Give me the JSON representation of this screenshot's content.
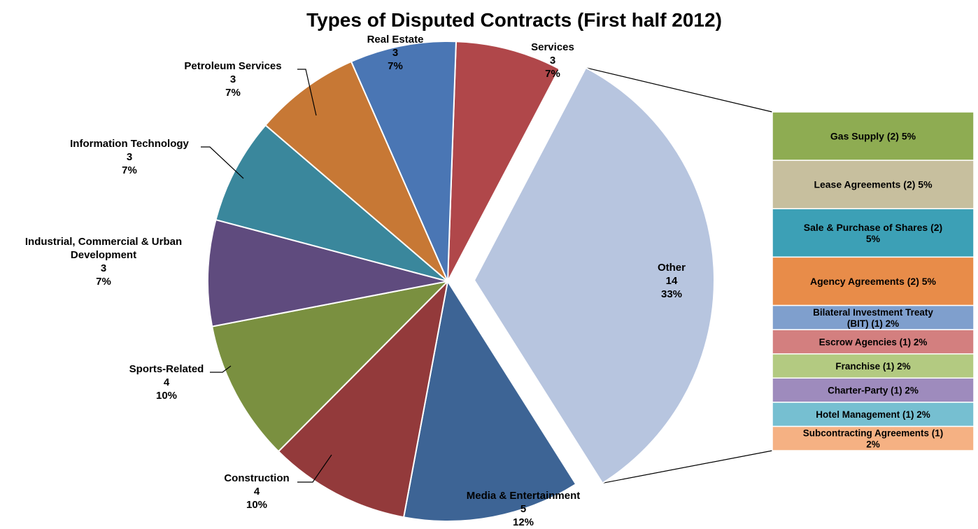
{
  "chart_data": {
    "type": "pie",
    "title": "Types of Disputed Contracts (First half 2012)",
    "slices": [
      {
        "name": "Services",
        "count": "3",
        "percent": "7%",
        "value": 3,
        "color": "#b0474a"
      },
      {
        "name": "Other",
        "count": "14",
        "percent": "33%",
        "value": 14,
        "color": "#b7c5df",
        "exploded": true
      },
      {
        "name": "Media & Entertainment",
        "count": "5",
        "percent": "12%",
        "value": 5,
        "color": "#3d6495"
      },
      {
        "name": "Construction",
        "count": "4",
        "percent": "10%",
        "value": 4,
        "color": "#933a3b"
      },
      {
        "name": "Sports-Related",
        "count": "4",
        "percent": "10%",
        "value": 4,
        "color": "#7a9040"
      },
      {
        "name": "Industrial, Commercial & Urban",
        "name_line2": "Development",
        "count": "3",
        "percent": "7%",
        "value": 3,
        "color": "#5f4b7e"
      },
      {
        "name": "Information Technology",
        "count": "3",
        "percent": "7%",
        "value": 3,
        "color": "#3a879c"
      },
      {
        "name": "Petroleum Services",
        "count": "3",
        "percent": "7%",
        "value": 3,
        "color": "#c77835"
      },
      {
        "name": "Real Estate",
        "count": "3",
        "percent": "7%",
        "value": 3,
        "color": "#4a76b4"
      }
    ],
    "other_breakdown": [
      {
        "label": "Gas Supply  (2) 5%",
        "value": 2,
        "color": "#8eac52"
      },
      {
        "label": "Lease Agreements (2) 5%",
        "value": 2,
        "color": "#c7bf9e"
      },
      {
        "label": "Sale & Purchase of Shares (2)",
        "label_line2": "5%",
        "value": 2,
        "color": "#3ca0b6"
      },
      {
        "label": "Agency Agreements (2) 5%",
        "value": 2,
        "color": "#e88c49"
      },
      {
        "label": "Bilateral Investment Treaty",
        "label_line2": "(BIT) (1) 2%",
        "value": 1,
        "color": "#7f9fcd"
      },
      {
        "label": "Escrow Agencies (1) 2%",
        "value": 1,
        "color": "#d37f7f"
      },
      {
        "label": "Franchise (1) 2%",
        "value": 1,
        "color": "#b3ca81"
      },
      {
        "label": "Charter-Party (1) 2%",
        "value": 1,
        "color": "#9e8bbd"
      },
      {
        "label": "Hotel Management  (1) 2%",
        "value": 1,
        "color": "#76bfd1"
      },
      {
        "label": "Subcontracting Agreements (1)",
        "label_line2": "2%",
        "value": 1,
        "color": "#f5b183"
      }
    ]
  }
}
